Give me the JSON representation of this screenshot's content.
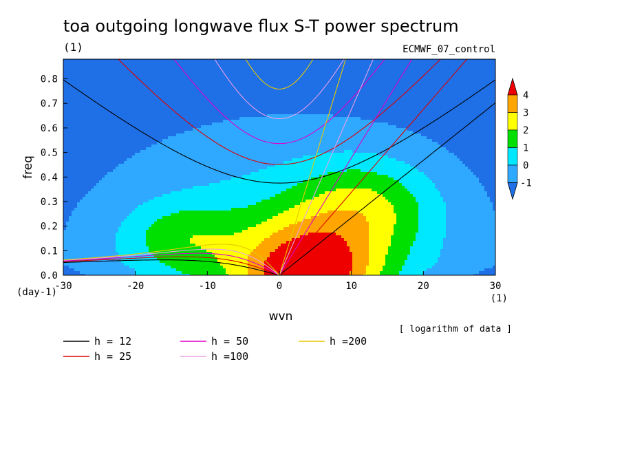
{
  "chart_data": {
    "type": "heatmap",
    "title": "toa outgoing longwave flux S-T power spectrum",
    "subtitle": "(1)",
    "model_label": "ECMWF_07_control",
    "xlabel": "wvn",
    "ylabel": "freq",
    "x_unit": "(1)",
    "y_unit": "(day-1)",
    "note": "[ logarithm of data ]",
    "xlim": [
      -30,
      30
    ],
    "ylim": [
      0,
      0.88
    ],
    "x_ticks": [
      -30,
      -20,
      -10,
      0,
      10,
      20,
      30
    ],
    "x_tick_labels": [
      "-30",
      "-20",
      "-10",
      "0",
      "10",
      "20",
      "30"
    ],
    "y_ticks": [
      0.0,
      0.1,
      0.2,
      0.3,
      0.4,
      0.5,
      0.6,
      0.7,
      0.8
    ],
    "y_tick_labels": [
      "0.0",
      "0.1",
      "0.2",
      "0.3",
      "0.4",
      "0.5",
      "0.6",
      "0.7",
      "0.8"
    ],
    "colorbar": {
      "levels": [
        -1,
        0,
        1,
        2,
        3,
        4
      ],
      "labels": [
        "-1",
        "0",
        "1",
        "2",
        "3",
        "4"
      ],
      "colors": [
        "#1f6fe6",
        "#2fa8ff",
        "#00e8ff",
        "#00e000",
        "#ffff00",
        "#ffa500",
        "#ee0000"
      ]
    },
    "dispersion_curves": [
      {
        "label": "h = 12",
        "h": 12,
        "color": "#000000"
      },
      {
        "label": "h = 25",
        "h": 25,
        "color": "#dd0000"
      },
      {
        "label": "h = 50",
        "h": 50,
        "color": "#dd00cc"
      },
      {
        "label": "h =100",
        "h": 100,
        "color": "#e8a0e8"
      },
      {
        "label": "h =200",
        "h": 200,
        "color": "#e8c800"
      }
    ]
  }
}
